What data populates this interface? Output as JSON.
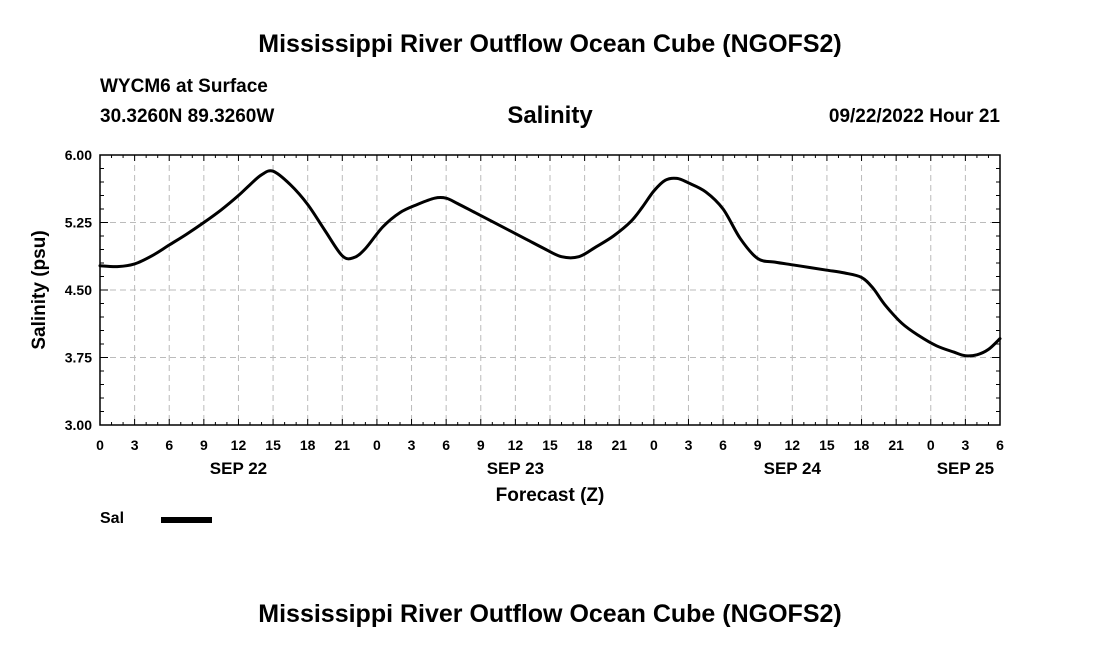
{
  "header": {
    "title": "Mississippi River Outflow Ocean Cube (NGOFS2)",
    "station": "WYCM6 at Surface",
    "coords": "30.3260N  89.3260W",
    "variable": "Salinity",
    "datetime": "09/22/2022 Hour 21"
  },
  "footer": {
    "title": "Mississippi River Outflow Ocean Cube (NGOFS2)"
  },
  "legend": {
    "label": "Sal"
  },
  "colors": {
    "line": "#000000",
    "grid": "#bbbbbb"
  },
  "chart_data": {
    "type": "line",
    "title": "Salinity",
    "xlabel": "Forecast (Z)",
    "ylabel": "Salinity (psu)",
    "xlim": [
      0,
      78
    ],
    "ylim": [
      3.0,
      6.0
    ],
    "x_unit": "hours from SEP 22 00Z",
    "yticks": [
      "3.00",
      "3.75",
      "4.50",
      "5.25",
      "6.00"
    ],
    "ytick_values": [
      3.0,
      3.75,
      4.5,
      5.25,
      6.0
    ],
    "xticks": [
      "0",
      "3",
      "6",
      "9",
      "12",
      "15",
      "18",
      "21",
      "0",
      "3",
      "6",
      "9",
      "12",
      "15",
      "18",
      "21",
      "0",
      "3",
      "6",
      "9",
      "12",
      "15",
      "18",
      "21",
      "0",
      "3",
      "6"
    ],
    "xtick_values": [
      0,
      3,
      6,
      9,
      12,
      15,
      18,
      21,
      24,
      27,
      30,
      33,
      36,
      39,
      42,
      45,
      48,
      51,
      54,
      57,
      60,
      63,
      66,
      69,
      72,
      75,
      78
    ],
    "date_labels": [
      {
        "label": "SEP 22",
        "hour": 12
      },
      {
        "label": "SEP 23",
        "hour": 36
      },
      {
        "label": "SEP 24",
        "hour": 60
      },
      {
        "label": "SEP 25",
        "hour": 75
      }
    ],
    "series": [
      {
        "name": "Sal",
        "x": [
          0,
          1.5,
          3,
          4.5,
          6,
          7.5,
          9,
          10.5,
          12,
          13,
          14,
          15,
          16.5,
          18,
          19.5,
          21,
          22,
          23,
          24.5,
          26,
          27.5,
          29,
          30,
          31,
          32.5,
          34,
          35.5,
          37,
          38.5,
          40,
          41.5,
          43,
          44.5,
          46,
          47,
          48,
          49,
          50,
          51,
          52.5,
          54,
          55.5,
          57,
          58.5,
          60,
          61.5,
          63,
          64.5,
          66,
          67,
          68,
          69.5,
          71,
          72.5,
          74,
          75,
          76,
          77,
          78
        ],
        "values": [
          4.77,
          4.76,
          4.79,
          4.88,
          5.0,
          5.12,
          5.25,
          5.39,
          5.55,
          5.67,
          5.78,
          5.82,
          5.67,
          5.45,
          5.16,
          4.88,
          4.86,
          4.96,
          5.2,
          5.36,
          5.45,
          5.52,
          5.52,
          5.46,
          5.36,
          5.26,
          5.16,
          5.06,
          4.96,
          4.87,
          4.87,
          4.98,
          5.1,
          5.26,
          5.42,
          5.6,
          5.72,
          5.74,
          5.69,
          5.59,
          5.4,
          5.07,
          4.85,
          4.81,
          4.78,
          4.75,
          4.72,
          4.69,
          4.64,
          4.52,
          4.34,
          4.13,
          3.99,
          3.88,
          3.81,
          3.77,
          3.78,
          3.84,
          3.96
        ]
      }
    ]
  }
}
